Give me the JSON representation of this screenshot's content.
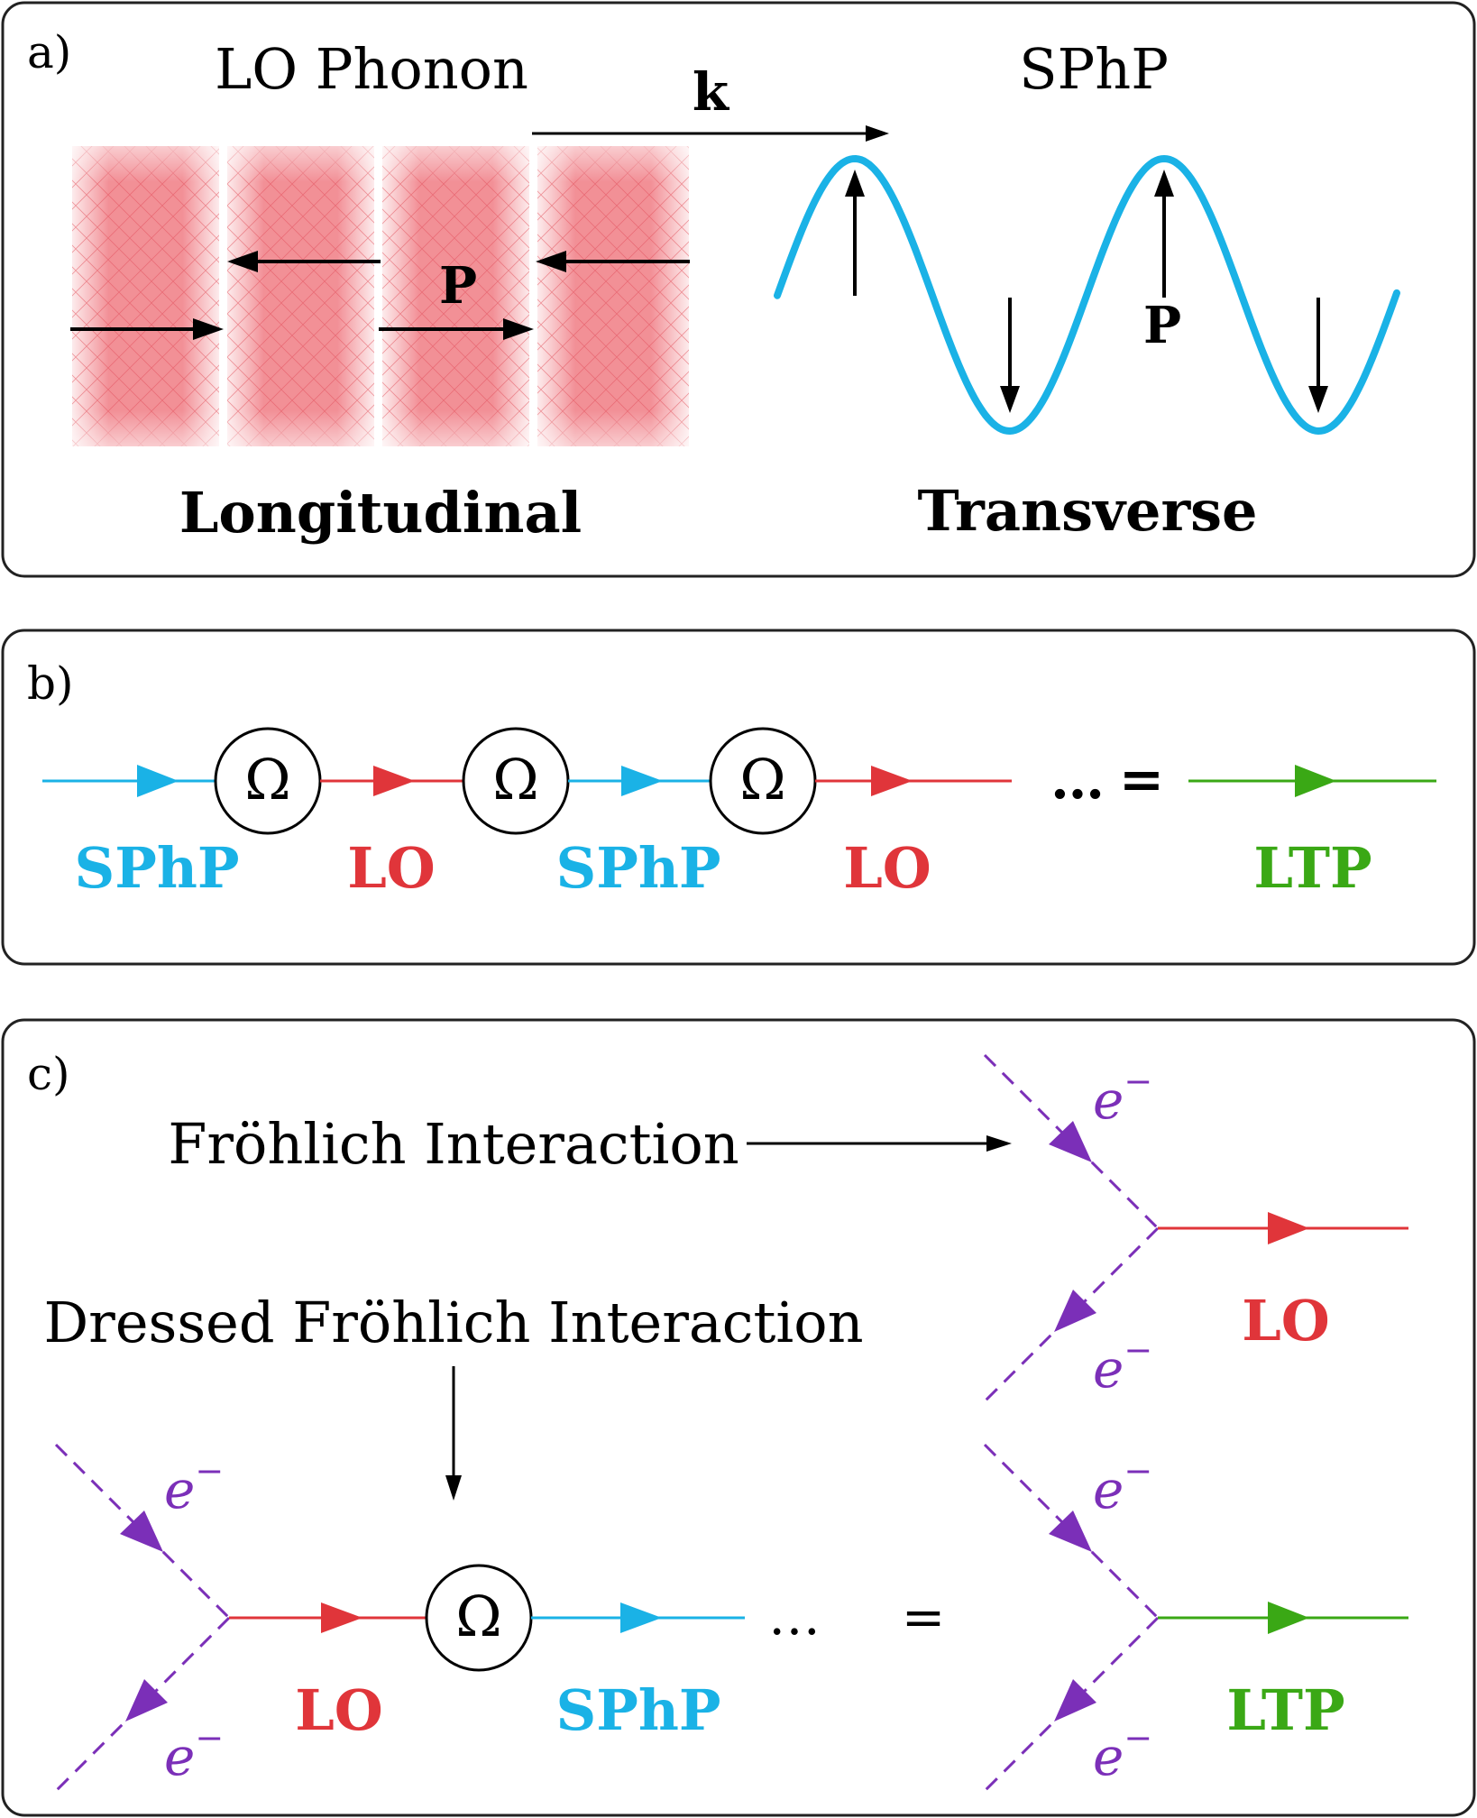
{
  "colors": {
    "sphp": "#1AB2E6",
    "lo": "#E0353A",
    "ltp": "#3AA815",
    "electron": "#7B2FB8",
    "ink": "#000000",
    "bar": "#F07C84",
    "panel_border": "#222222"
  },
  "panel_a": {
    "label": "a)",
    "lo_title": "LO Phonon",
    "sphp_title": "SPhP",
    "k_label": "k",
    "p_label_left": "P",
    "p_label_right": "P",
    "longitudinal_label": "Longitudinal",
    "transverse_label": "Transverse"
  },
  "panel_b": {
    "label": "b)",
    "omega": "Ω",
    "dots": "…",
    "equals": "=",
    "seg_labels": [
      "SPhP",
      "LO",
      "SPhP",
      "LO"
    ],
    "result_label": "LTP"
  },
  "panel_c": {
    "label": "c)",
    "frohlich_label": "Fröhlich Interaction",
    "dressed_label": "Dressed Fröhlich Interaction",
    "electron": "e",
    "electron_sup": "−",
    "lo_label": "LO",
    "sphp_label": "SPhP",
    "omega": "Ω",
    "dots": "…",
    "equals": "=",
    "top_right_label": "LO",
    "bottom_right_label": "LTP"
  }
}
